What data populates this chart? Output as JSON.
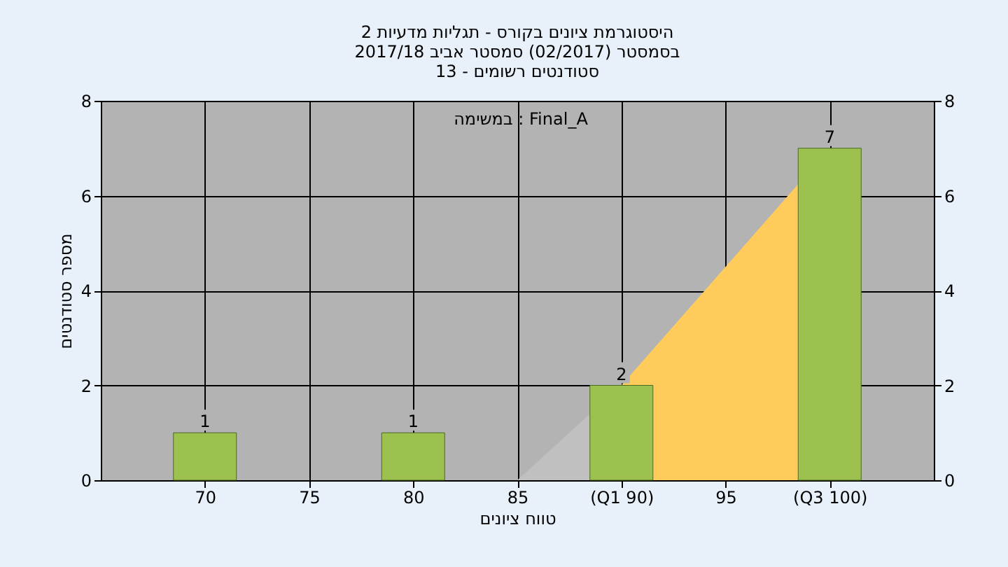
{
  "chart_data": {
    "type": "bar",
    "title": [
      "היסטוגרמת ציונים בקורס - תגליות מדעיות 2",
      "בסמסטר (02/2017) סמסטר אביב 2017/18",
      "סטודנטים רשומים - 13"
    ],
    "xlabel": "טווח ציונים",
    "ylabel": "מספר סטודנטים",
    "annotations": [
      "במשימה : Final_A"
    ],
    "series": [
      {
        "type": "area",
        "x": [
          85,
          90
        ],
        "values": [
          0,
          2
        ],
        "color": "#c0c0c0"
      },
      {
        "type": "area",
        "x": [
          90,
          100
        ],
        "values": [
          2,
          7
        ],
        "color": "#ffcc5c"
      },
      {
        "x": [
          70,
          80,
          90,
          100
        ],
        "values": [
          1,
          1,
          2,
          7
        ],
        "value_labels": [
          "1",
          "1",
          "2",
          "7"
        ],
        "color": "#9cc14f"
      }
    ],
    "xlim": [
      65,
      105
    ],
    "xticks": [
      70,
      75,
      80,
      85,
      {
        "value": 90,
        "label": "(Q1 90)"
      },
      95,
      {
        "value": 100,
        "label": "(Q3 100)"
      }
    ],
    "ylim": [
      0,
      8
    ],
    "yticks": [
      0,
      2,
      4,
      6,
      8
    ],
    "y2lim": [
      0,
      8
    ],
    "y2ticks": [
      0,
      2,
      4,
      6,
      8
    ],
    "grid": true
  }
}
